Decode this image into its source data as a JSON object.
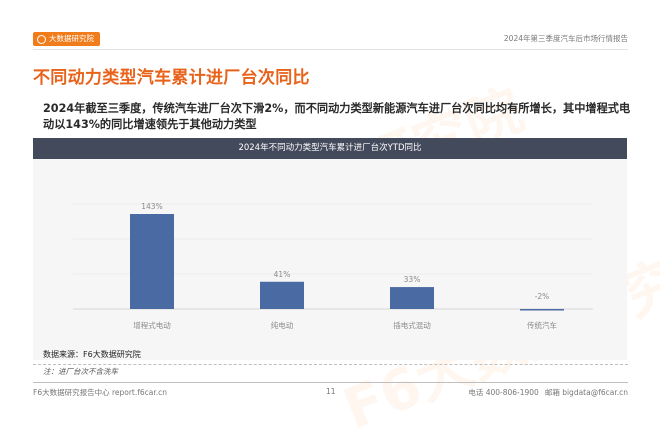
{
  "header": {
    "logo_text": "大数据研究院",
    "report_title": "2024年第三季度汽车后市场行情报告"
  },
  "page_title": "不同动力类型汽车累计进厂台次同比",
  "summary": "2024年截至三季度，传统汽车进厂台次下滑2%，而不同动力类型新能源汽车进厂台次同比均有所增长，其中增程式电动以143%的同比增速领先于其他动力类型",
  "watermark_text": "F6大数据研究院",
  "chart_data": {
    "type": "bar",
    "title": "2024年不同动力类型汽车累计进厂台次YTD同比",
    "categories": [
      "增程式电动",
      "纯电动",
      "插电式混动",
      "传统汽车"
    ],
    "values": [
      143,
      41,
      33,
      -2
    ],
    "value_labels": [
      "143%",
      "41%",
      "33%",
      "-2%"
    ],
    "unit": "%",
    "bar_color": "#4a6aa3",
    "ylim": [
      -10,
      160
    ],
    "grid": true,
    "legend": "none"
  },
  "source": "数据来源：F6大数据研究院",
  "note": "注：进厂台次不含洗车",
  "footer": {
    "left": "F6大数据研究报告中心 report.f6car.cn",
    "page": "11",
    "phone": "电话 400-806-1900",
    "email": "邮箱 bigdata@f6car.cn"
  },
  "colors": {
    "accent": "#f07c1b",
    "title": "#e8621a",
    "chart_header": "#434a5c"
  }
}
